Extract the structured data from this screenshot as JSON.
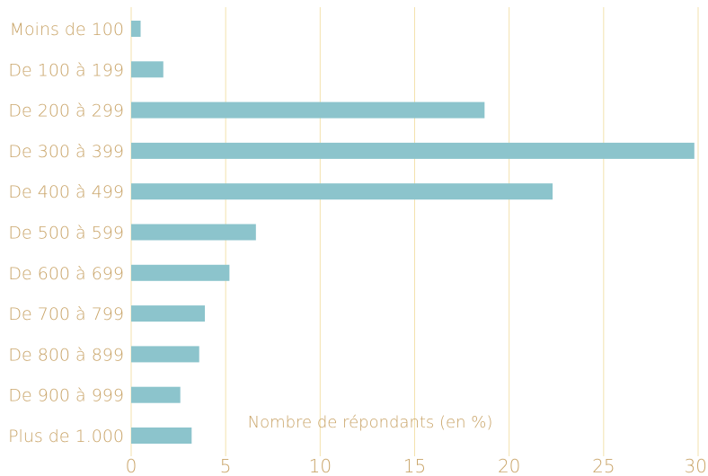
{
  "colors": {
    "bar": "#8cc4cc",
    "grid": "#f3e2ad",
    "text": "#c9a468",
    "background": "#ffffff"
  },
  "chart_data": {
    "type": "bar",
    "orientation": "horizontal",
    "categories": [
      "Moins de 100",
      "De 100 à 199",
      "De 200 à 299",
      "De 300 à 399",
      "De 400 à 499",
      "De 500 à 599",
      "De 600 à 699",
      "De 700 à 799",
      "De 800 à 899",
      "De 900 à 999",
      "Plus de 1.000"
    ],
    "values": [
      0.5,
      1.7,
      18.7,
      29.8,
      22.3,
      6.6,
      5.2,
      3.9,
      3.6,
      2.6,
      3.2
    ],
    "xlabel": "Nombre de répondants (en %)",
    "ylabel": "",
    "title": "",
    "xlim": [
      0,
      30
    ],
    "xticks": [
      "0",
      "5",
      "10",
      "15",
      "20",
      "25",
      "30"
    ],
    "grid": "vertical",
    "legend": "none"
  }
}
